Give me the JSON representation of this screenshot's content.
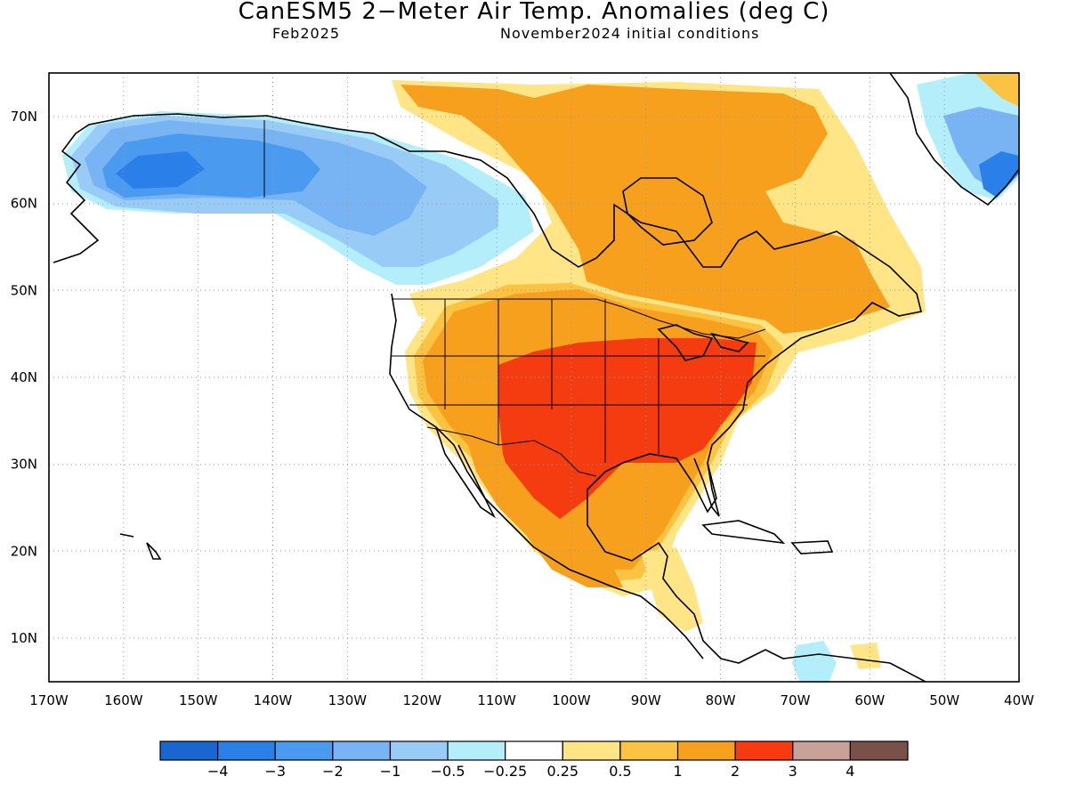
{
  "title": "CanESM5 2−Meter Air Temp. Anomalies (deg C)",
  "subtitle_left": "Feb2025",
  "subtitle_right": "November2024 initial conditions",
  "map": {
    "lon_range": [
      -170,
      -40
    ],
    "lat_range": [
      5,
      75
    ],
    "lon_labels": [
      "170W",
      "160W",
      "150W",
      "140W",
      "130W",
      "120W",
      "110W",
      "100W",
      "90W",
      "80W",
      "70W",
      "60W",
      "50W",
      "40W"
    ],
    "lat_labels": [
      "10N",
      "20N",
      "30N",
      "40N",
      "50N",
      "60N",
      "70N"
    ],
    "grid": "dotted"
  },
  "colorbar": {
    "colors": [
      "#1965d2",
      "#2a7fe8",
      "#4a9af0",
      "#78b4f4",
      "#98cbf5",
      "#b3eefa",
      "#ffffff",
      "#ffe585",
      "#fcc241",
      "#f7a01e",
      "#f43c10",
      "#c8a297",
      "#7a5148"
    ],
    "labels": [
      "−4",
      "−3",
      "−2",
      "−1",
      "−0.5",
      "−0.25",
      "0.25",
      "0.5",
      "1",
      "2",
      "3",
      "4"
    ]
  },
  "anomaly_regions": [
    {
      "region": "Alaska / Western Canada",
      "anomaly": "-2 to -1"
    },
    {
      "region": "Southern Texas / Southern Plains / Southeast US",
      "anomaly": "2 to 3"
    },
    {
      "region": "Eastern Canada",
      "anomaly": "1 to 2"
    },
    {
      "region": "Greenland southeast coast",
      "anomaly": "-3 to -2"
    }
  ]
}
